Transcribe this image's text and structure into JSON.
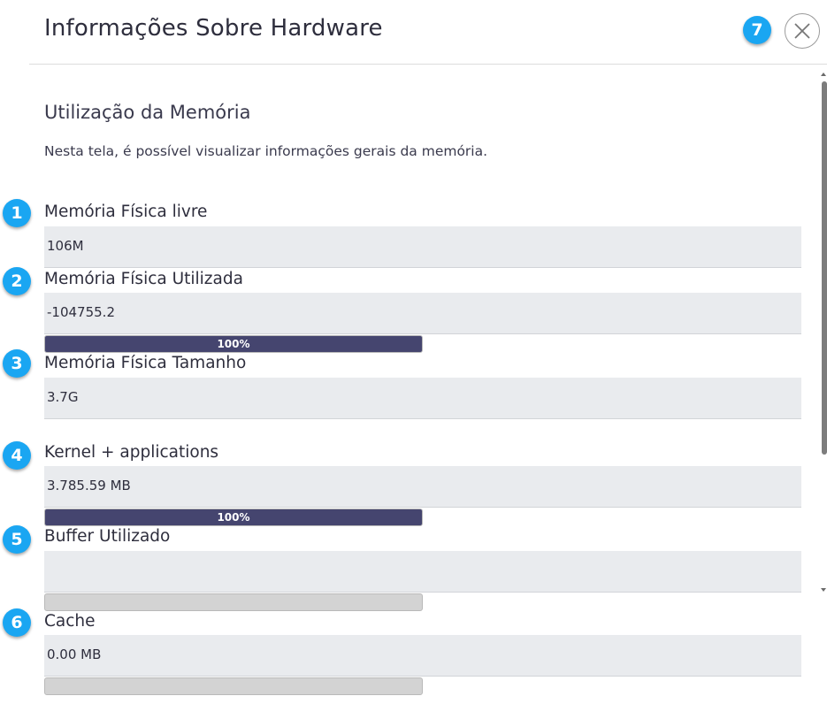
{
  "dialog": {
    "title": "Informações Sobre Hardware",
    "close_icon": "close-icon"
  },
  "section": {
    "title": "Utilização da Memória",
    "description": "Nesta tela, é possível visualizar informações gerais da memória."
  },
  "badges": [
    "1",
    "2",
    "3",
    "4",
    "5",
    "6",
    "7"
  ],
  "fields": [
    {
      "label": "Memória Física livre",
      "value": "106M"
    },
    {
      "label": "Memória Física Utilizada",
      "value": "-104755.2",
      "progress": {
        "percent": 100,
        "text": "100%"
      }
    },
    {
      "label": "Memória Física Tamanho",
      "value": "3.7G"
    },
    {
      "label": "Kernel + applications",
      "value": "3.785.59 MB",
      "progress": {
        "percent": 100,
        "text": "100%"
      }
    },
    {
      "label": "Buffer Utilizado",
      "value": "",
      "progress": {
        "percent": 0,
        "text": ""
      }
    },
    {
      "label": "Cache",
      "value": "0.00 MB",
      "progress": {
        "percent": 0,
        "text": ""
      }
    }
  ],
  "colors": {
    "badge": "#1aa6f2",
    "progress_fill": "#45456f",
    "progress_empty": "#d3d3d3",
    "field_bg": "#e9ebee"
  }
}
